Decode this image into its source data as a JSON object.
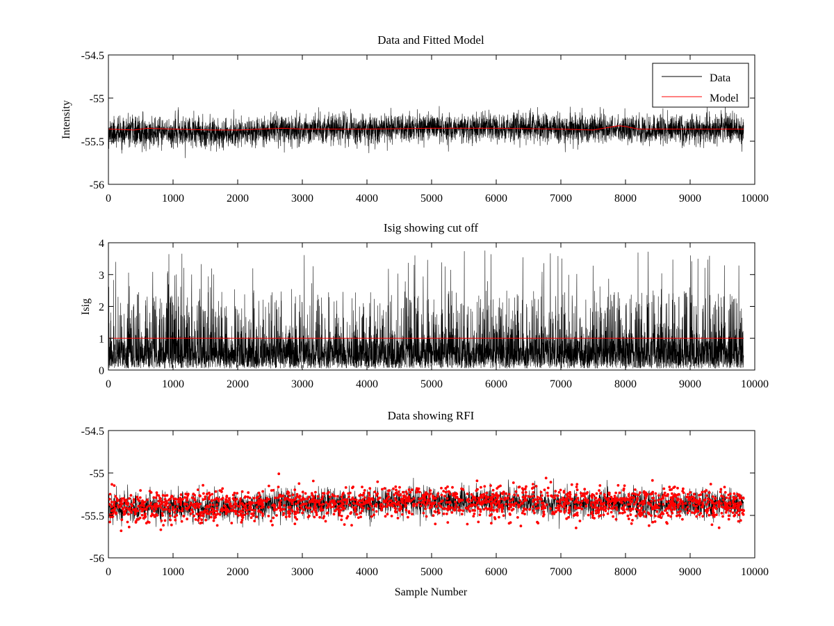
{
  "chart_data": [
    {
      "id": "top",
      "type": "line",
      "title": "Data and Fitted Model",
      "xlabel": "",
      "ylabel": "Intensity",
      "xlim": [
        0,
        10000
      ],
      "ylim": [
        -56,
        -54.5
      ],
      "xticks": [
        0,
        1000,
        2000,
        3000,
        4000,
        5000,
        6000,
        7000,
        8000,
        9000,
        10000
      ],
      "xtick_labels": [
        "0",
        "1000",
        "2000",
        "3000",
        "4000",
        "5000",
        "6000",
        "7000",
        "8000",
        "9000",
        "10000"
      ],
      "yticks": [
        -56,
        -55.5,
        -55,
        -54.5
      ],
      "ytick_labels": [
        "-56",
        "-55.5",
        "-55",
        "-54.5"
      ],
      "grid": false,
      "legend": {
        "placement": "top-right",
        "entries": [
          "Data",
          "Model"
        ]
      },
      "series": [
        {
          "name": "Data",
          "color": "#000000",
          "n_samples": 9830,
          "baseline": {
            "x": [
              0,
              1000,
              2000,
              2500,
              3000,
              4000,
              5000,
              6000,
              7000,
              8000,
              9000,
              9830
            ],
            "y": [
              -55.4,
              -55.4,
              -55.4,
              -55.37,
              -55.36,
              -55.36,
              -55.34,
              -55.34,
              -55.35,
              -55.36,
              -55.36,
              -55.37
            ]
          },
          "spread_sd": 0.085,
          "range_min": -55.75,
          "range_max": -55.0
        },
        {
          "name": "Model",
          "color": "#ff0000",
          "x": [
            0,
            400,
            600,
            1000,
            1600,
            2000,
            2700,
            3000,
            4000,
            5000,
            6000,
            7000,
            7500,
            7900,
            8000,
            8200,
            9000,
            9830
          ],
          "y": [
            -55.36,
            -55.37,
            -55.35,
            -55.36,
            -55.37,
            -55.37,
            -55.35,
            -55.36,
            -55.36,
            -55.35,
            -55.35,
            -55.36,
            -55.37,
            -55.32,
            -55.33,
            -55.36,
            -55.36,
            -55.36
          ]
        }
      ]
    },
    {
      "id": "middle",
      "type": "line",
      "title": "Isig showing cut off",
      "xlabel": "",
      "ylabel": "Isig",
      "xlim": [
        0,
        10000
      ],
      "ylim": [
        0,
        4
      ],
      "xticks": [
        0,
        1000,
        2000,
        3000,
        4000,
        5000,
        6000,
        7000,
        8000,
        9000,
        10000
      ],
      "xtick_labels": [
        "0",
        "1000",
        "2000",
        "3000",
        "4000",
        "5000",
        "6000",
        "7000",
        "8000",
        "9000",
        "10000"
      ],
      "yticks": [
        0,
        1,
        2,
        3,
        4
      ],
      "ytick_labels": [
        "0",
        "1",
        "2",
        "3",
        "4"
      ],
      "grid": false,
      "series": [
        {
          "name": "Isig",
          "color": "#000000",
          "n_samples": 9830,
          "typical_max": 2.5,
          "peak_max": 3.8
        },
        {
          "name": "Cut off",
          "color": "#ff0000",
          "x": [
            0,
            9830
          ],
          "y": [
            1,
            1
          ]
        }
      ]
    },
    {
      "id": "bottom",
      "type": "scatter",
      "title": "Data showing RFI",
      "xlabel": "Sample Number",
      "ylabel": "",
      "xlim": [
        0,
        10000
      ],
      "ylim": [
        -56,
        -54.5
      ],
      "xticks": [
        0,
        1000,
        2000,
        3000,
        4000,
        5000,
        6000,
        7000,
        8000,
        9000,
        10000
      ],
      "xtick_labels": [
        "0",
        "1000",
        "2000",
        "3000",
        "4000",
        "5000",
        "6000",
        "7000",
        "8000",
        "9000",
        "10000"
      ],
      "yticks": [
        -56,
        -55.5,
        -55,
        -54.5
      ],
      "ytick_labels": [
        "-56",
        "-55.5",
        "-55",
        "-54.5"
      ],
      "grid": false,
      "series": [
        {
          "name": "Data",
          "color": "#000000",
          "n_samples": 9830,
          "baseline": {
            "x": [
              0,
              1000,
              2000,
              2500,
              3000,
              4000,
              5000,
              6000,
              7000,
              8000,
              9000,
              9830
            ],
            "y": [
              -55.4,
              -55.4,
              -55.4,
              -55.37,
              -55.36,
              -55.36,
              -55.34,
              -55.34,
              -55.35,
              -55.36,
              -55.36,
              -55.37
            ]
          },
          "spread_sd": 0.085
        },
        {
          "name": "RFI flagged",
          "color": "#ff0000",
          "marker": "dot",
          "n_points": 1900,
          "range_min": -55.7,
          "range_max": -54.98
        }
      ]
    }
  ]
}
